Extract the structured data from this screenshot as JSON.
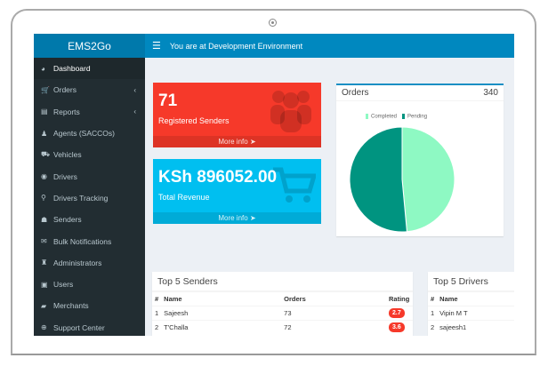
{
  "app": {
    "title": "EMS2Go",
    "environment": "You are at Development Environment"
  },
  "sidebar": {
    "items": [
      {
        "label": "Dashboard",
        "icon": "dashboard-icon",
        "active": true
      },
      {
        "label": "Orders",
        "icon": "cart-icon",
        "chevron": true
      },
      {
        "label": "Reports",
        "icon": "reports-icon",
        "chevron": true
      },
      {
        "label": "Agents (SACCOs)",
        "icon": "user-icon"
      },
      {
        "label": "Vehicles",
        "icon": "car-icon"
      },
      {
        "label": "Drivers",
        "icon": "user-circle-icon"
      },
      {
        "label": "Drivers Tracking",
        "icon": "map-marker-icon"
      },
      {
        "label": "Senders",
        "icon": "users-icon"
      },
      {
        "label": "Bulk Notifications",
        "icon": "envelope-icon"
      },
      {
        "label": "Administrators",
        "icon": "user-secret-icon"
      },
      {
        "label": "Users",
        "icon": "id-card-icon"
      },
      {
        "label": "Merchants",
        "icon": "briefcase-icon"
      },
      {
        "label": "Support Center",
        "icon": "life-ring-icon"
      }
    ]
  },
  "stats": {
    "senders": {
      "value": "71",
      "label": "Registered Senders",
      "more": "More info",
      "color": "#f6392a"
    },
    "revenue": {
      "value": "KSh 896052.00",
      "label": "Total Revenue",
      "more": "More info",
      "color": "#00bff0"
    }
  },
  "orders_card": {
    "title": "Orders",
    "total": "340"
  },
  "chart_data": {
    "type": "pie",
    "legend_placement": "top",
    "series": [
      {
        "name": "Completed",
        "value": 165,
        "color": "#8ef9c3"
      },
      {
        "name": "Pending",
        "value": 175,
        "color": "#009480"
      }
    ]
  },
  "top_senders": {
    "title": "Top 5 Senders",
    "columns": [
      "#",
      "Name",
      "Orders",
      "Rating"
    ],
    "rows": [
      [
        "1",
        "Sajeesh",
        "73",
        "2.7"
      ],
      [
        "2",
        "T'Challa",
        "72",
        "3.6"
      ]
    ]
  },
  "top_drivers": {
    "title": "Top 5 Drivers",
    "columns": [
      "#",
      "Name"
    ],
    "rows": [
      [
        "1",
        "Vipin M T"
      ],
      [
        "2",
        "sajeesh1"
      ]
    ]
  }
}
